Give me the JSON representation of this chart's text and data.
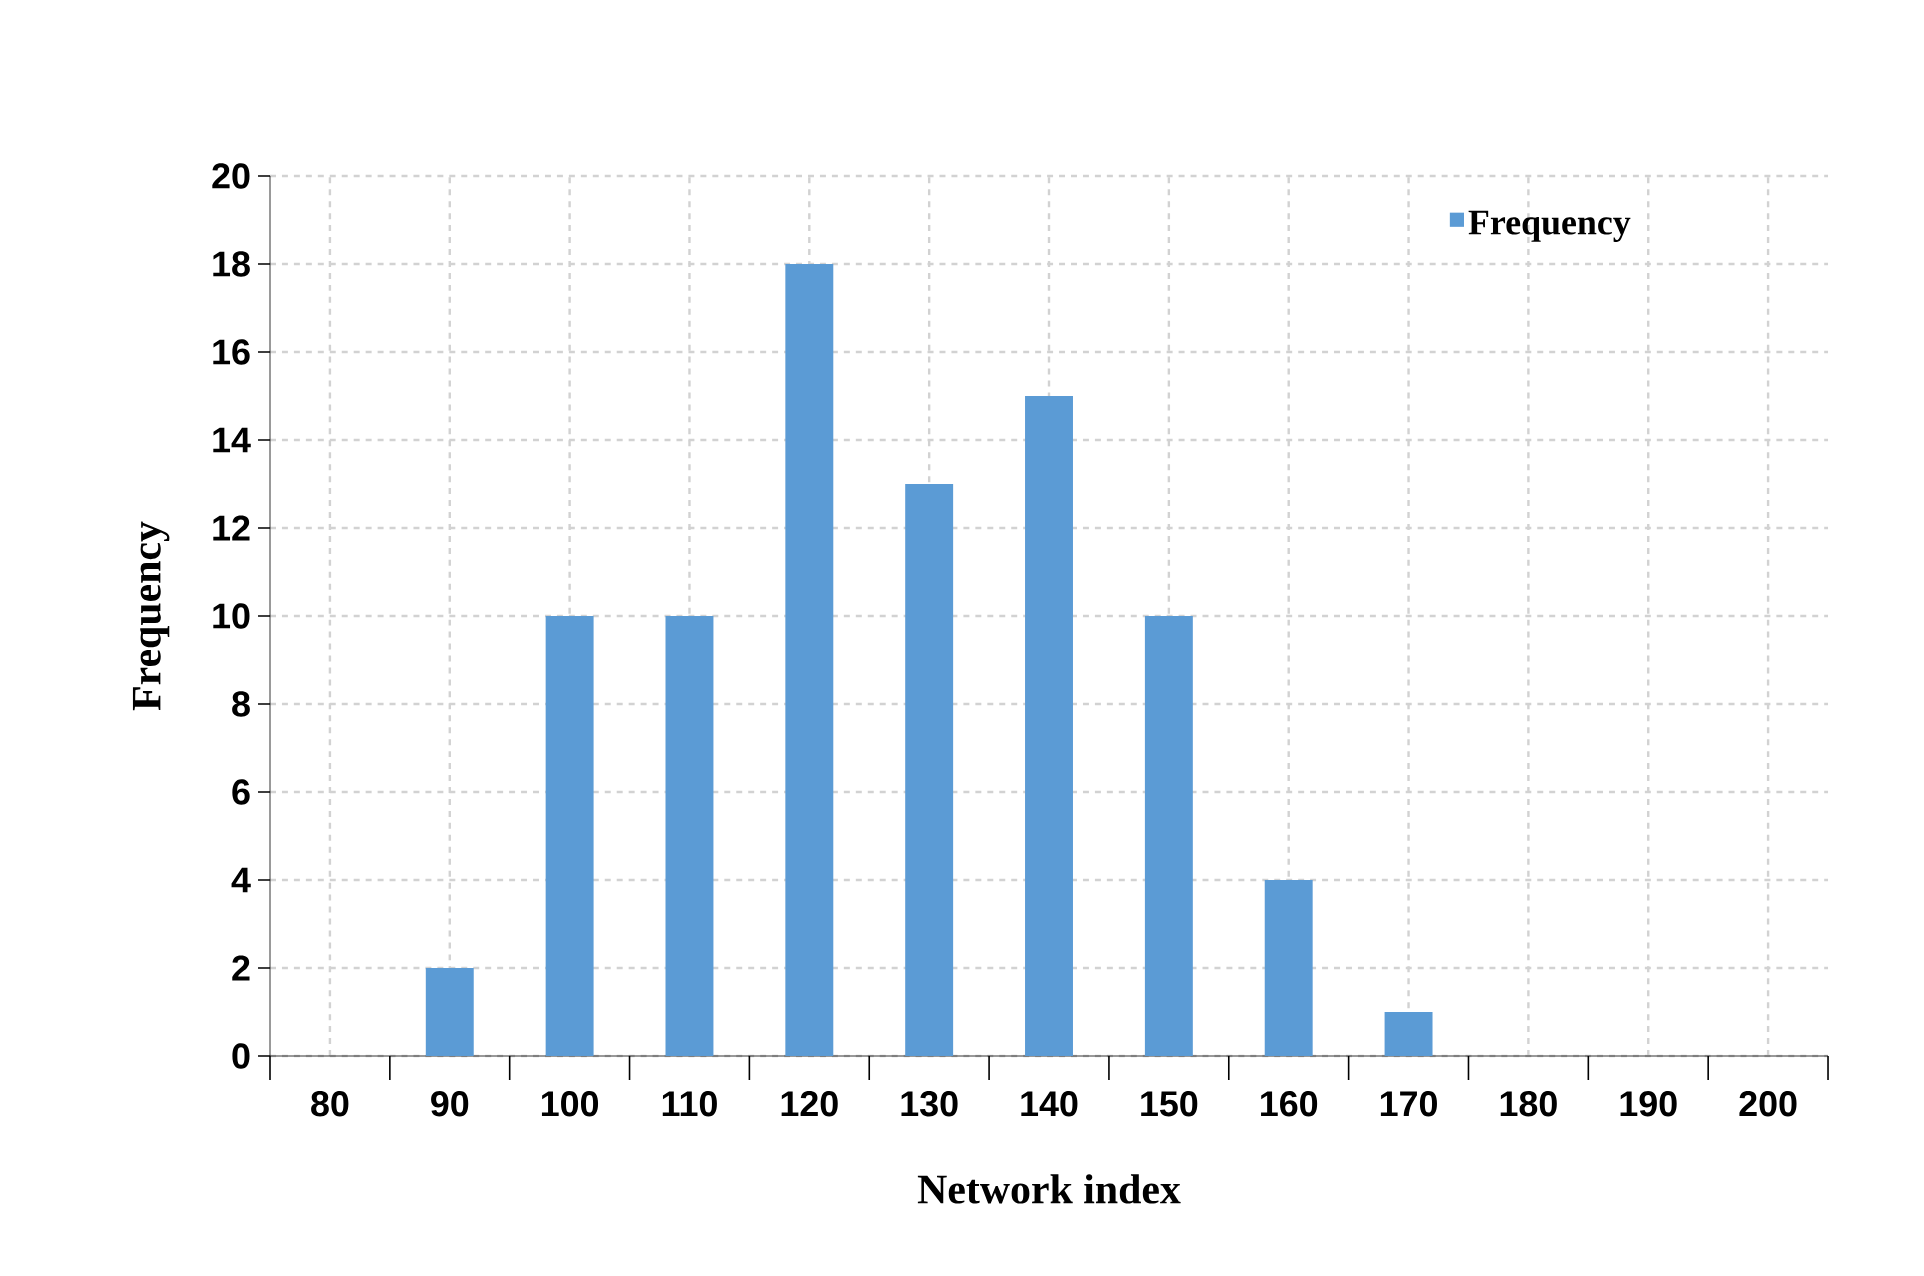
{
  "chart_data": {
    "type": "bar",
    "xlabel": "Network index",
    "ylabel": "Frequency",
    "categories": [
      "80",
      "90",
      "100",
      "110",
      "120",
      "130",
      "140",
      "150",
      "160",
      "170",
      "180",
      "190",
      "200"
    ],
    "series": [
      {
        "name": "Frequency",
        "color": "#5b9bd5",
        "values": [
          0,
          2,
          10,
          10,
          18,
          13,
          15,
          10,
          4,
          1,
          0,
          0,
          0
        ]
      }
    ],
    "ylim": [
      0,
      20
    ],
    "yticks": [
      0,
      2,
      4,
      6,
      8,
      10,
      12,
      14,
      16,
      18,
      20
    ],
    "grid": true,
    "legend": "top right"
  }
}
